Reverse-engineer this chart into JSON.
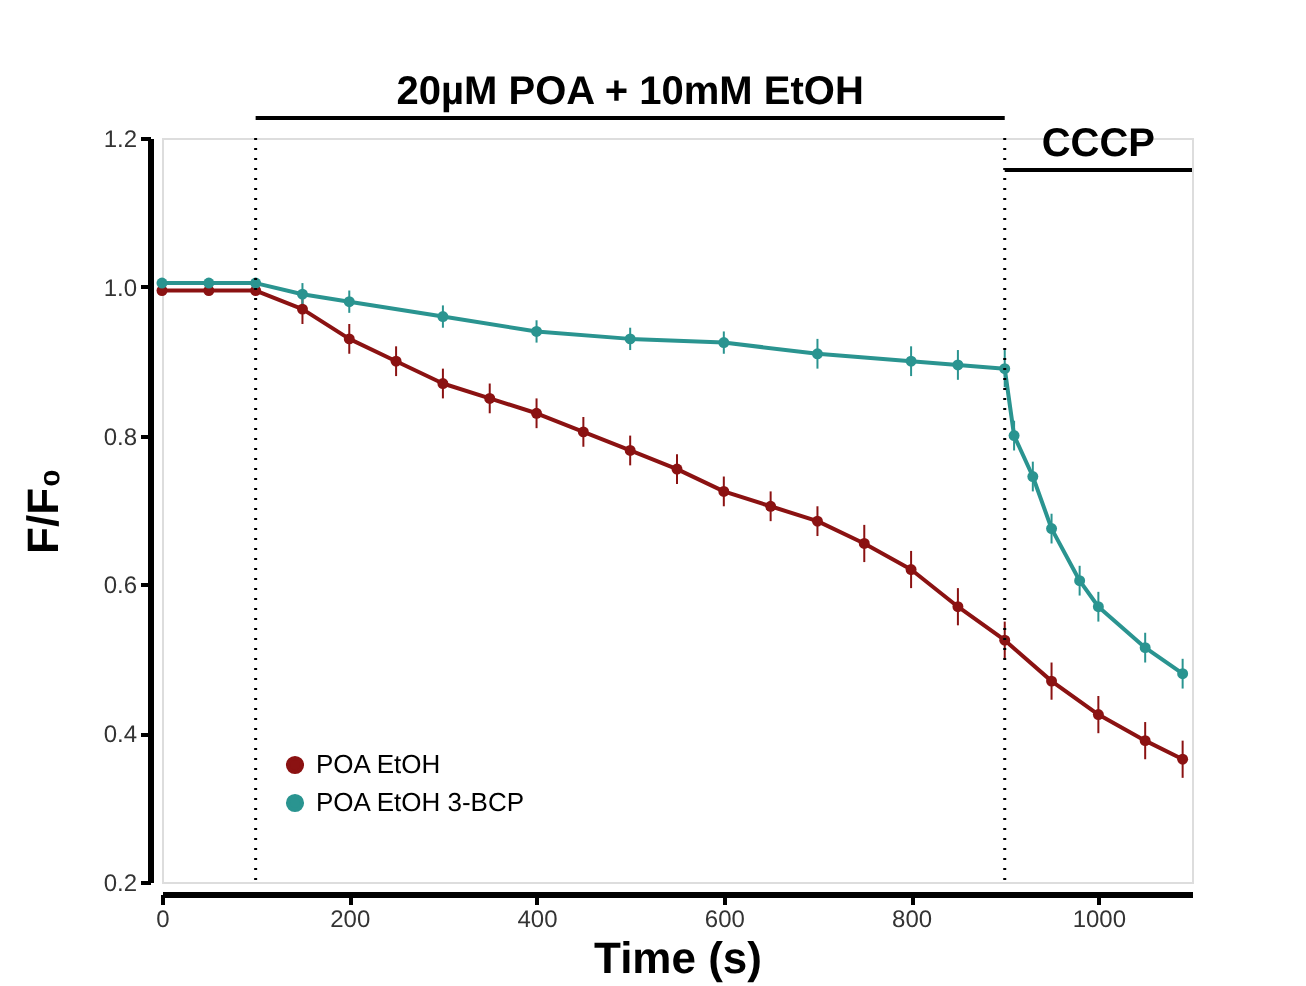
{
  "chart_data": {
    "type": "line",
    "xlabel": "Time (s)",
    "ylabel": "F/F₀",
    "xlim": [
      0,
      1100
    ],
    "xticks": [
      0,
      200,
      400,
      600,
      800,
      1000
    ],
    "ylim": [
      0.2,
      1.2
    ],
    "yticks": [
      0.2,
      0.4,
      0.6,
      0.8,
      {
        "value": 1.0,
        "label": "1.0"
      },
      1.2
    ],
    "grid": false,
    "legend": "bottom left",
    "marker": "circle",
    "line_style": "solid",
    "series": [
      {
        "name": "POA EtOH",
        "color": "#8b1212",
        "x": [
          0,
          50,
          100,
          150,
          200,
          250,
          300,
          350,
          400,
          450,
          500,
          550,
          600,
          650,
          700,
          750,
          800,
          850,
          900,
          950,
          1000,
          1050,
          1090
        ],
        "values": [
          0.995,
          0.995,
          0.995,
          0.97,
          0.93,
          0.9,
          0.87,
          0.85,
          0.83,
          0.805,
          0.78,
          0.755,
          0.725,
          0.705,
          0.685,
          0.655,
          0.62,
          0.57,
          0.525,
          0.47,
          0.425,
          0.39,
          0.365
        ],
        "errors": [
          null,
          null,
          null,
          0.02,
          0.02,
          0.02,
          0.02,
          0.02,
          0.02,
          0.02,
          0.02,
          0.02,
          0.02,
          0.02,
          0.02,
          0.025,
          0.025,
          0.025,
          0.025,
          0.025,
          0.025,
          0.025,
          0.025
        ]
      },
      {
        "name": "POA EtOH 3-BCP",
        "color": "#2a9490",
        "x": [
          0,
          50,
          100,
          150,
          200,
          300,
          400,
          500,
          600,
          700,
          800,
          850,
          900,
          910,
          930,
          950,
          980,
          1000,
          1050,
          1090
        ],
        "values": [
          1.005,
          1.005,
          1.005,
          0.99,
          0.98,
          0.96,
          0.94,
          0.93,
          0.925,
          0.91,
          0.9,
          0.895,
          0.89,
          0.8,
          0.745,
          0.675,
          0.605,
          0.57,
          0.515,
          0.48
        ],
        "errors": [
          null,
          null,
          null,
          0.015,
          0.015,
          0.015,
          0.015,
          0.015,
          0.015,
          0.02,
          0.02,
          0.02,
          0.025,
          0.02,
          0.02,
          0.02,
          0.02,
          0.02,
          0.02,
          0.02
        ]
      }
    ],
    "ref_lines": [
      {
        "axis": "x",
        "value": 100,
        "line_style": "dotted",
        "color": "#000000"
      },
      {
        "axis": "x",
        "value": 900,
        "line_style": "dotted",
        "color": "#000000"
      }
    ],
    "annotations": [
      "20µM POA + 10mM EtOH",
      "CCCP"
    ]
  }
}
